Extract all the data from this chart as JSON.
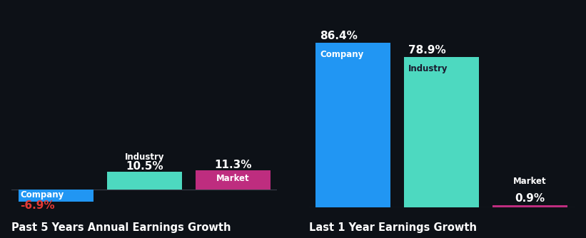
{
  "bg_color": "#0d1117",
  "chart1": {
    "title": "Past 5 Years Annual Earnings Growth",
    "categories": [
      "Company",
      "Industry",
      "Market"
    ],
    "values": [
      -6.9,
      10.5,
      11.3
    ],
    "colors": [
      "#2196f3",
      "#4dd9c0",
      "#be2d7f"
    ],
    "value_colors": [
      "#e53935",
      "#ffffff",
      "#ffffff"
    ],
    "label_color": "#ffffff",
    "market_label_inside": true,
    "ylim": [
      -10,
      100
    ]
  },
  "chart2": {
    "title": "Last 1 Year Earnings Growth",
    "categories": [
      "Company",
      "Industry",
      "Market"
    ],
    "values": [
      86.4,
      78.9,
      0.9
    ],
    "colors": [
      "#2196f3",
      "#4dd9c0",
      "#be2d7f"
    ],
    "value_colors": [
      "#ffffff",
      "#ffffff",
      "#ffffff"
    ],
    "label_color": "#ffffff",
    "ylim": [
      0,
      100
    ]
  },
  "title_fontsize": 10.5,
  "label_fontsize": 8.5,
  "value_fontsize": 11
}
